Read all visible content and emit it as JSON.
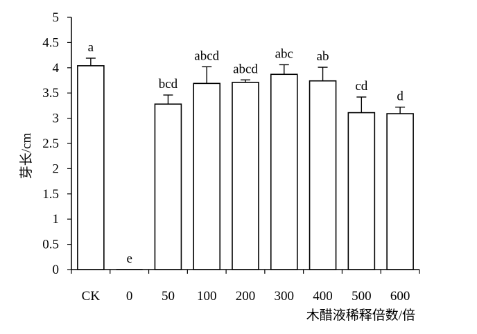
{
  "chart_data": {
    "type": "bar",
    "title": "",
    "xlabel": "木醋液稀释倍数/倍",
    "ylabel": "芽长/cm",
    "ylim": [
      0,
      5
    ],
    "yticks": [
      "0",
      "0.5",
      "1",
      "1.5",
      "2",
      "2.5",
      "3",
      "3.5",
      "4",
      "4.5",
      "5"
    ],
    "categories": [
      "CK",
      "0",
      "50",
      "100",
      "200",
      "300",
      "400",
      "500",
      "600"
    ],
    "values": [
      4.04,
      0.0,
      3.28,
      3.69,
      3.71,
      3.87,
      3.74,
      3.11,
      3.09
    ],
    "errors": [
      0.15,
      0.0,
      0.18,
      0.33,
      0.05,
      0.19,
      0.27,
      0.31,
      0.13
    ],
    "significance_labels": [
      "a",
      "e",
      "bcd",
      "abcd",
      "abcd",
      "abc",
      "ab",
      "cd",
      "d"
    ],
    "grid": false,
    "legend": "none",
    "bar_fill": "#ffffff",
    "bar_stroke": "#000000"
  }
}
